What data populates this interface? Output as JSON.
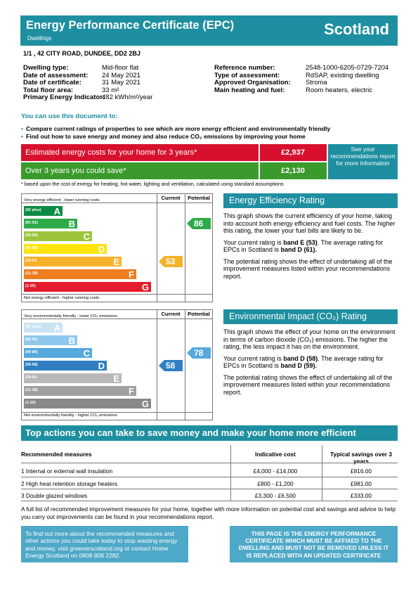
{
  "header": {
    "title": "Energy Performance Certificate (EPC)",
    "subtitle": "Dwellings",
    "country": "Scotland"
  },
  "address": "1/1 , 42 CITY ROAD, DUNDEE, DD2 2BJ",
  "details_left": [
    {
      "label": "Dwelling type:",
      "value": "Mid-floor flat"
    },
    {
      "label": "Date of assessment:",
      "value": "24 May 2021"
    },
    {
      "label": "Date of certificate:",
      "value": "31 May 2021"
    },
    {
      "label": "Total floor area:",
      "value": "33 m²"
    },
    {
      "label": "Primary Energy Indicator:",
      "value": "482 kWh/m²/year"
    }
  ],
  "details_right": [
    {
      "label": "Reference number:",
      "value": "2548-1000-6205-0729-7204"
    },
    {
      "label": "Type of assessment:",
      "value": "RdSAP, existing dwelling"
    },
    {
      "label": "Approved Organisation:",
      "value": "Stroma"
    },
    {
      "label": "Main heating and fuel:",
      "value": "Room heaters, electric"
    }
  ],
  "use_heading": "You can use this document to:",
  "bullets": [
    "Compare current ratings of properties to see which are more energy efficient and environmentally friendly",
    "Find out how to save energy and money and also reduce CO₂ emissions by improving your home"
  ],
  "costs": {
    "estimated_label": "Estimated energy costs for your home for 3 years*",
    "estimated_value": "£2,937",
    "save_label": "Over 3 years you could save*",
    "save_value": "£2,130",
    "recommendations": "See your recommendations report for more information",
    "footnote": "* based upon the cost of energy for heating, hot water, lighting and ventilation, calculated using standard assumptions",
    "colors": {
      "estimated": "#d7102e",
      "save": "#3b9a2c"
    }
  },
  "ee_graph": {
    "top_text": "Very energy efficient - lower running costs",
    "bottom_text": "Not energy efficient - higher running costs",
    "current_label": "Current",
    "potential_label": "Potential",
    "bands": [
      {
        "range": "(92 plus)",
        "letter": "A",
        "color": "#0b8c44"
      },
      {
        "range": "(81-91)",
        "letter": "B",
        "color": "#2eab48"
      },
      {
        "range": "(69-80)",
        "letter": "C",
        "color": "#9dc53b"
      },
      {
        "range": "(55-68)",
        "letter": "D",
        "color": "#fde40c"
      },
      {
        "range": "(39-54",
        "letter": "E",
        "color": "#f6b12a"
      },
      {
        "range": "(21-38)",
        "letter": "F",
        "color": "#ee7d1f"
      },
      {
        "range": "(1-20)",
        "letter": "G",
        "color": "#e41c2c"
      }
    ],
    "current": 53,
    "current_band": "E",
    "current_color": "#f6b12a",
    "potential": 86,
    "potential_band": "B",
    "potential_color": "#2eab48"
  },
  "ei_graph": {
    "top_text": "Very environmentally friendly - lower CO₂ emissions",
    "bottom_text": "Not environmentally friendly - higher CO₂ emissions",
    "current_label": "Current",
    "potential_label": "Potential",
    "bands": [
      {
        "range": "(92 plus)",
        "letter": "A",
        "color": "#c9e3f4"
      },
      {
        "range": "(81-91)",
        "letter": "B",
        "color": "#8fc8ec"
      },
      {
        "range": "(69-80)",
        "letter": "C",
        "color": "#57a9dd"
      },
      {
        "range": "(55-68)",
        "letter": "D",
        "color": "#2f7fc2"
      },
      {
        "range": "(39-54",
        "letter": "E",
        "color": "#b8b8b8"
      },
      {
        "range": "(21-38)",
        "letter": "F",
        "color": "#a0a0a0"
      },
      {
        "range": "(1-20)",
        "letter": "G",
        "color": "#888888"
      }
    ],
    "current": 58,
    "current_band": "D",
    "current_color": "#2f7fc2",
    "potential": 78,
    "potential_band": "C",
    "potential_color": "#57a9dd"
  },
  "ee_panel": {
    "title": "Energy Efficiency Rating",
    "p1": "This graph shows the current efficiency of your home, taking into account both energy efficiency and fuel costs. The higher this rating, the lower your fuel bills are likely to be.",
    "p2_a": "Your current rating is ",
    "p2_b": "band E (53)",
    "p2_c": ". The average rating for EPCs in Scotland is ",
    "p2_d": "band D (61).",
    "p3": "The potential rating shows the effect of undertaking all of the improvement measures listed within your recommendations report."
  },
  "ei_panel": {
    "title": "Environmental Impact (CO₂) Rating",
    "p1": "This graph shows the effect of your home on the environment in terms of carbon dioxide (CO₂) emissions. The higher the rating, the less impact it has on the environment.",
    "p2_a": "Your current rating is ",
    "p2_b": "band D (58)",
    "p2_c": ". The average rating for EPCs in Scotland is ",
    "p2_d": "band D (59).",
    "p3": "The potential rating shows the effect of undertaking all of the improvement measures listed within your recommendations report."
  },
  "actions": {
    "title": "Top actions you can take to save money and make your home more efficient",
    "headers": [
      "Recommended measures",
      "Indicative cost",
      "Typical savings over 3 years"
    ],
    "rows": [
      {
        "measure": "1 Internal or external wall insulation",
        "cost": "£4,000 - £14,000",
        "saving": "£816.00"
      },
      {
        "measure": "2 High heat retention storage heaters",
        "cost": "£800 - £1,200",
        "saving": "£981.00"
      },
      {
        "measure": "3 Double glazed windows",
        "cost": "£3,300 - £6,500",
        "saving": "£333.00"
      }
    ],
    "full_list": "A full list of recommended improvement measures for your home, together with more information on potential cost and savings and advice to help you carry out improvements can be found in your recommendations report."
  },
  "footer": {
    "advice": "To find out more about the recommended measures and other actions you could take today to stop wasting energy and money, visit greenerscotland.org or contact Home Energy Scotland on 0808 808 2282.",
    "notice": "THIS PAGE IS THE ENERGY PERFORMANCE CERTIFICATE WHICH MUST BE AFFIXED TO THE DWELLING AND MUST NOT BE REMOVED UNLESS IT IS REPLACED WITH AN UPDATED CERTIFICATE"
  }
}
